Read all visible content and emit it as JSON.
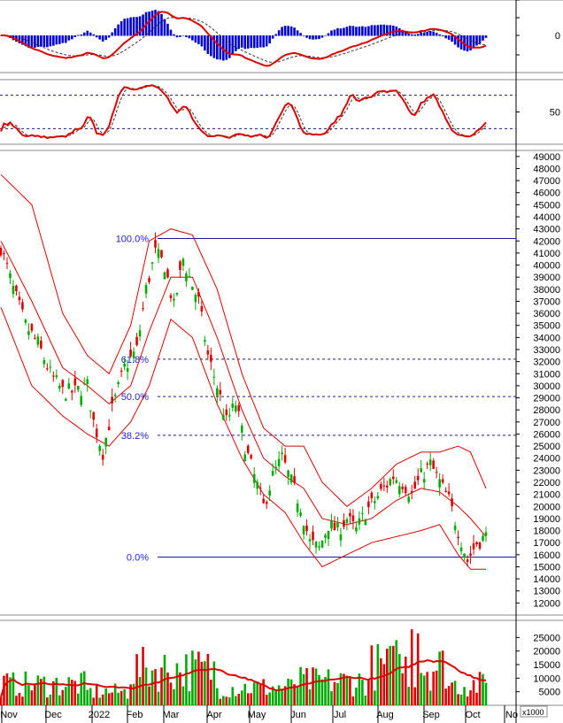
{
  "chart_data": [
    {
      "type": "line",
      "panel": "macd",
      "y_ticks": [
        "0"
      ],
      "colors": {
        "histogram": "#0000cc",
        "macd": "#dd0000",
        "signal": "#333333"
      }
    },
    {
      "type": "line",
      "panel": "stochastic",
      "y_ticks": [
        "50"
      ],
      "reference_levels": [
        80,
        20
      ],
      "colors": {
        "k": "#dd0000",
        "d": "#333333"
      }
    },
    {
      "type": "candlestick",
      "panel": "price",
      "y_ticks": [
        "49000",
        "48000",
        "47000",
        "46000",
        "45000",
        "44000",
        "43000",
        "42000",
        "41000",
        "40000",
        "39000",
        "38000",
        "37000",
        "36000",
        "35000",
        "34000",
        "33000",
        "32000",
        "31000",
        "30000",
        "29000",
        "28000",
        "27000",
        "26000",
        "25000",
        "24000",
        "23000",
        "22000",
        "21000",
        "20000",
        "19000",
        "18000",
        "17000",
        "16000",
        "15000",
        "14000",
        "13000",
        "12000"
      ],
      "ylim": [
        11000,
        49500
      ],
      "fibonacci": [
        {
          "label": "100.0%",
          "value": 42200
        },
        {
          "label": "61.8%",
          "value": 32200
        },
        {
          "label": "50.0%",
          "value": 29100
        },
        {
          "label": "38.2%",
          "value": 25900
        },
        {
          "label": "0.0%",
          "value": 15800
        }
      ],
      "months": [
        "Nov",
        "Dec",
        "2022",
        "Feb",
        "Mar",
        "Apr",
        "May",
        "Jun",
        "Jul",
        "Aug",
        "Sep",
        "Oct",
        "No"
      ],
      "series_outline": [
        [
          0,
          41500
        ],
        [
          4,
          38000
        ],
        [
          8,
          35000
        ],
        [
          12,
          33500
        ],
        [
          16,
          31000
        ],
        [
          20,
          29500
        ],
        [
          24,
          29500
        ],
        [
          28,
          30000
        ],
        [
          30,
          27000
        ],
        [
          33,
          24500
        ],
        [
          36,
          28000
        ],
        [
          40,
          31500
        ],
        [
          44,
          33000
        ],
        [
          47,
          38000
        ],
        [
          50,
          41000
        ],
        [
          53,
          40000
        ],
        [
          56,
          36500
        ],
        [
          59,
          40500
        ],
        [
          61,
          39000
        ],
        [
          64,
          37000
        ],
        [
          67,
          32500
        ],
        [
          70,
          30000
        ],
        [
          73,
          27000
        ],
        [
          76,
          28500
        ],
        [
          79,
          25000
        ],
        [
          82,
          22500
        ],
        [
          85,
          20000
        ],
        [
          88,
          22500
        ],
        [
          91,
          24000
        ],
        [
          94,
          22000
        ],
        [
          97,
          20000
        ],
        [
          100,
          17000
        ],
        [
          103,
          16500
        ],
        [
          106,
          18500
        ],
        [
          109,
          18000
        ],
        [
          112,
          19000
        ],
        [
          115,
          18000
        ],
        [
          118,
          19500
        ],
        [
          121,
          20500
        ],
        [
          124,
          21500
        ],
        [
          127,
          22500
        ],
        [
          130,
          22000
        ],
        [
          133,
          21000
        ],
        [
          136,
          22500
        ],
        [
          139,
          23500
        ],
        [
          142,
          22000
        ],
        [
          145,
          20500
        ],
        [
          148,
          18000
        ],
        [
          151,
          15500
        ],
        [
          154,
          17000
        ],
        [
          157,
          17500
        ]
      ],
      "bollinger_upper_outline": [
        [
          0,
          47500
        ],
        [
          10,
          45000
        ],
        [
          20,
          36000
        ],
        [
          28,
          32500
        ],
        [
          35,
          31000
        ],
        [
          42,
          35000
        ],
        [
          48,
          42000
        ],
        [
          55,
          43000
        ],
        [
          62,
          42500
        ],
        [
          70,
          38000
        ],
        [
          78,
          31000
        ],
        [
          85,
          26500
        ],
        [
          92,
          25000
        ],
        [
          98,
          25000
        ],
        [
          104,
          22000
        ],
        [
          112,
          20000
        ],
        [
          120,
          21500
        ],
        [
          128,
          23500
        ],
        [
          136,
          24500
        ],
        [
          142,
          24500
        ],
        [
          148,
          25000
        ],
        [
          152,
          24500
        ],
        [
          157,
          21500
        ]
      ],
      "bollinger_mid_outline": [
        [
          0,
          42000
        ],
        [
          10,
          37000
        ],
        [
          20,
          31500
        ],
        [
          28,
          30000
        ],
        [
          35,
          28500
        ],
        [
          42,
          30000
        ],
        [
          48,
          34500
        ],
        [
          55,
          39000
        ],
        [
          62,
          39000
        ],
        [
          70,
          34000
        ],
        [
          78,
          28000
        ],
        [
          85,
          24000
        ],
        [
          92,
          22500
        ],
        [
          98,
          21500
        ],
        [
          104,
          19000
        ],
        [
          112,
          18500
        ],
        [
          120,
          19000
        ],
        [
          128,
          20500
        ],
        [
          136,
          21500
        ],
        [
          142,
          21200
        ],
        [
          148,
          20000
        ],
        [
          152,
          19000
        ],
        [
          157,
          17500
        ]
      ],
      "bollinger_lower_outline": [
        [
          0,
          36500
        ],
        [
          10,
          30000
        ],
        [
          20,
          27500
        ],
        [
          28,
          26000
        ],
        [
          35,
          25000
        ],
        [
          42,
          27000
        ],
        [
          48,
          30000
        ],
        [
          55,
          35500
        ],
        [
          62,
          34000
        ],
        [
          70,
          28500
        ],
        [
          78,
          24000
        ],
        [
          85,
          21000
        ],
        [
          92,
          19500
        ],
        [
          98,
          17000
        ],
        [
          104,
          15000
        ],
        [
          112,
          16000
        ],
        [
          120,
          17000
        ],
        [
          128,
          17500
        ],
        [
          136,
          18000
        ],
        [
          142,
          18500
        ],
        [
          148,
          16000
        ],
        [
          152,
          14800
        ],
        [
          157,
          14800
        ]
      ]
    },
    {
      "type": "bar",
      "panel": "volume",
      "y_ticks": [
        "25000",
        "20000",
        "15000",
        "10000",
        "5000"
      ],
      "unit_label": "x1000",
      "ylim": [
        0,
        30000
      ],
      "colors": {
        "up": "#00aa00",
        "down": "#dd0000",
        "average": "#dd0000"
      }
    }
  ]
}
